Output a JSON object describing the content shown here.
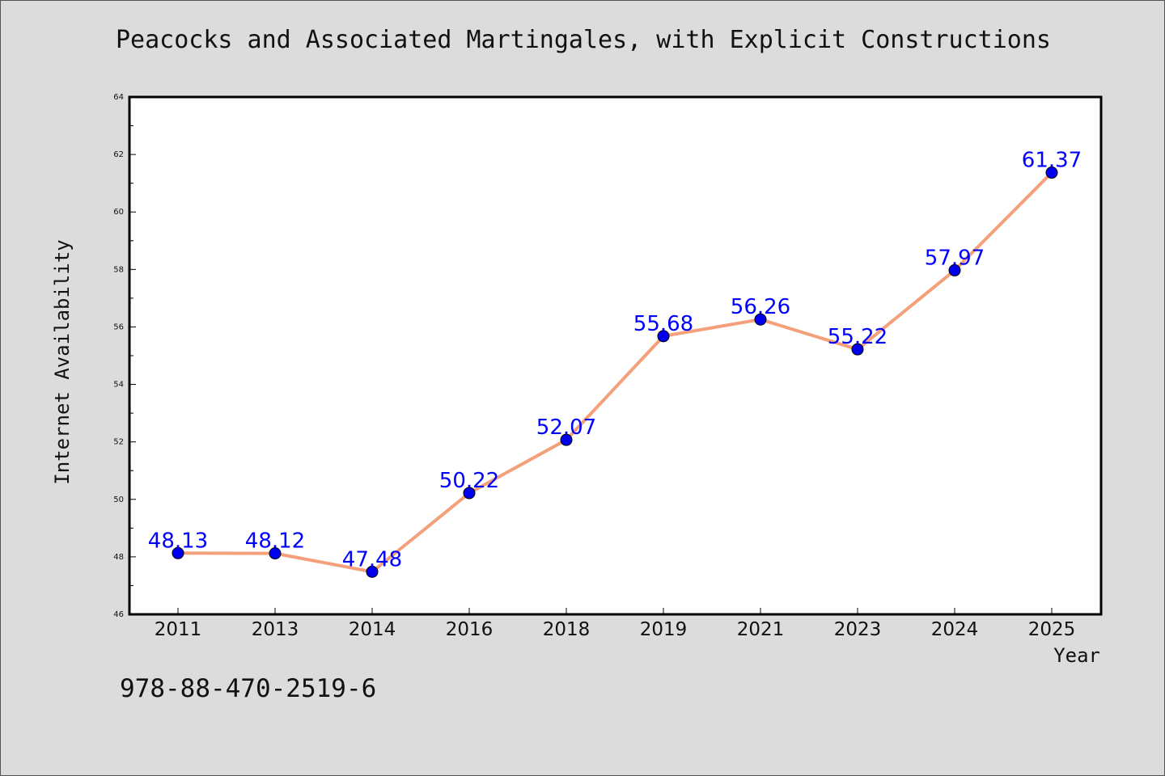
{
  "chart_data": {
    "type": "line",
    "title": "Peacocks and Associated Martingales, with Explicit Constructions",
    "xlabel": "Year",
    "ylabel": "Internet Availability",
    "categories": [
      "2011",
      "2013",
      "2014",
      "2016",
      "2018",
      "2019",
      "2021",
      "2023",
      "2024",
      "2025"
    ],
    "series": [
      {
        "values": [
          48.13,
          48.12,
          47.48,
          50.22,
          52.07,
          55.68,
          56.26,
          55.22,
          57.97,
          61.37
        ],
        "labels": [
          "48.13",
          "48.12",
          "47.48",
          "50.22",
          "52.07",
          "55.68",
          "56.26",
          "55.22",
          "57.97",
          "61.37"
        ],
        "line_color": "#f4a07a",
        "marker_color": "#0000ee"
      }
    ],
    "ylim": [
      46,
      64
    ],
    "yticks": [
      "46",
      "48",
      "50",
      "52",
      "54",
      "56",
      "58",
      "60",
      "62",
      "64"
    ],
    "grid": false,
    "legend": "none"
  },
  "footer": {
    "isbn": "978-88-470-2519-6"
  },
  "colors": {
    "background": "#dcdcdc",
    "plot_area": "#ffffff",
    "label_text": "#0000ff"
  }
}
